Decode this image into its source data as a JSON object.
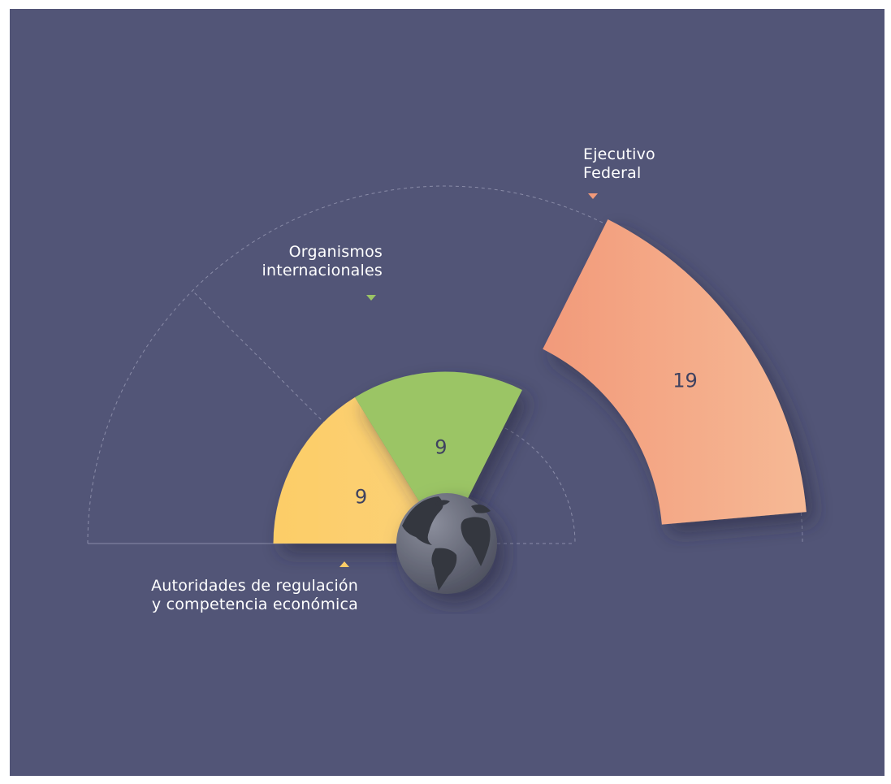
{
  "chart_data": {
    "type": "polar-area",
    "title": "",
    "series": [
      {
        "label": [
          "Autoridades de regulación",
          "y competencia económica"
        ],
        "value": 9,
        "color": "#fccd67",
        "color_end": "#fbd178"
      },
      {
        "label": [
          "Organismos",
          "internacionales"
        ],
        "value": 9,
        "color": "#9bc565",
        "color_end": "#9bc565"
      },
      {
        "label": [
          "Ejecutivo",
          "Federal"
        ],
        "value": 19,
        "color": "#f29a7a",
        "color_end": "#f6b995"
      }
    ]
  },
  "colors": {
    "background": "#525577",
    "page": "#ffffff",
    "value_text": "#3f4260",
    "label_text": "#ffffff",
    "guides": "#8a8ca8"
  },
  "icon": "globe-icon"
}
